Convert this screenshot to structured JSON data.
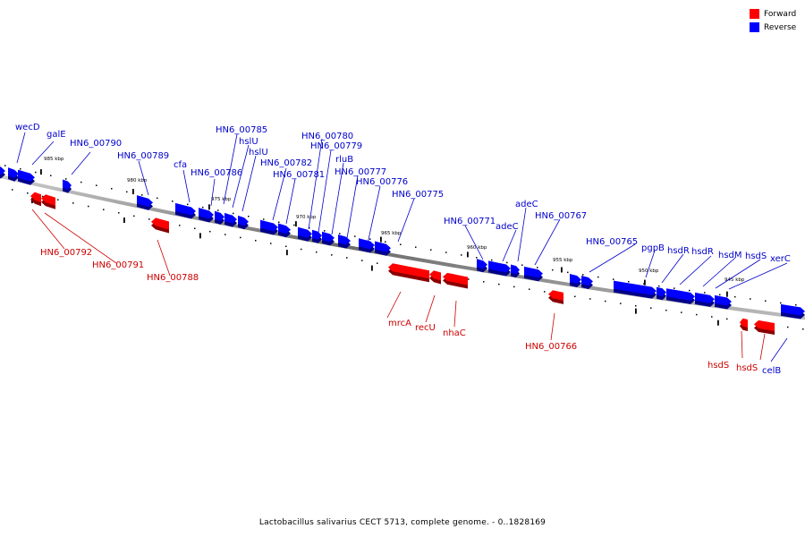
{
  "legend": {
    "forward_label": "Forward",
    "reverse_label": "Reverse",
    "forward_color": "#ff0000",
    "reverse_color": "#0000ff"
  },
  "caption": "Lactobacillus salivarius CECT 5713, complete genome. - 0..1828169",
  "scale": {
    "unit": "kbp",
    "labels": [
      "985 kbp",
      "980 kbp",
      "975 kbp",
      "970 kbp",
      "965 kbp",
      "960 kbp",
      "955 kbp",
      "950 kbp",
      "945 kbp"
    ]
  },
  "genes": {
    "reverse": [
      "wecD",
      "galE",
      "HN6_00790",
      "HN6_00789",
      "cfa",
      "HN6_00786",
      "HN6_00785",
      "hslU",
      "hslU",
      "HN6_00782",
      "HN6_00781",
      "HN6_00780",
      "HN6_00779",
      "rluB",
      "HN6_00777",
      "HN6_00776",
      "HN6_00775",
      "HN6_00771",
      "adeC",
      "adeC",
      "HN6_00767",
      "HN6_00765",
      "pgpB",
      "hsdR",
      "hsdR",
      "hsdM",
      "hsdS",
      "xerC",
      "celB"
    ],
    "forward": [
      "HN6_00792",
      "HN6_00791",
      "HN6_00788",
      "mrcA",
      "recU",
      "nhaC",
      "HN6_00766",
      "hsdS",
      "hsdS"
    ]
  }
}
